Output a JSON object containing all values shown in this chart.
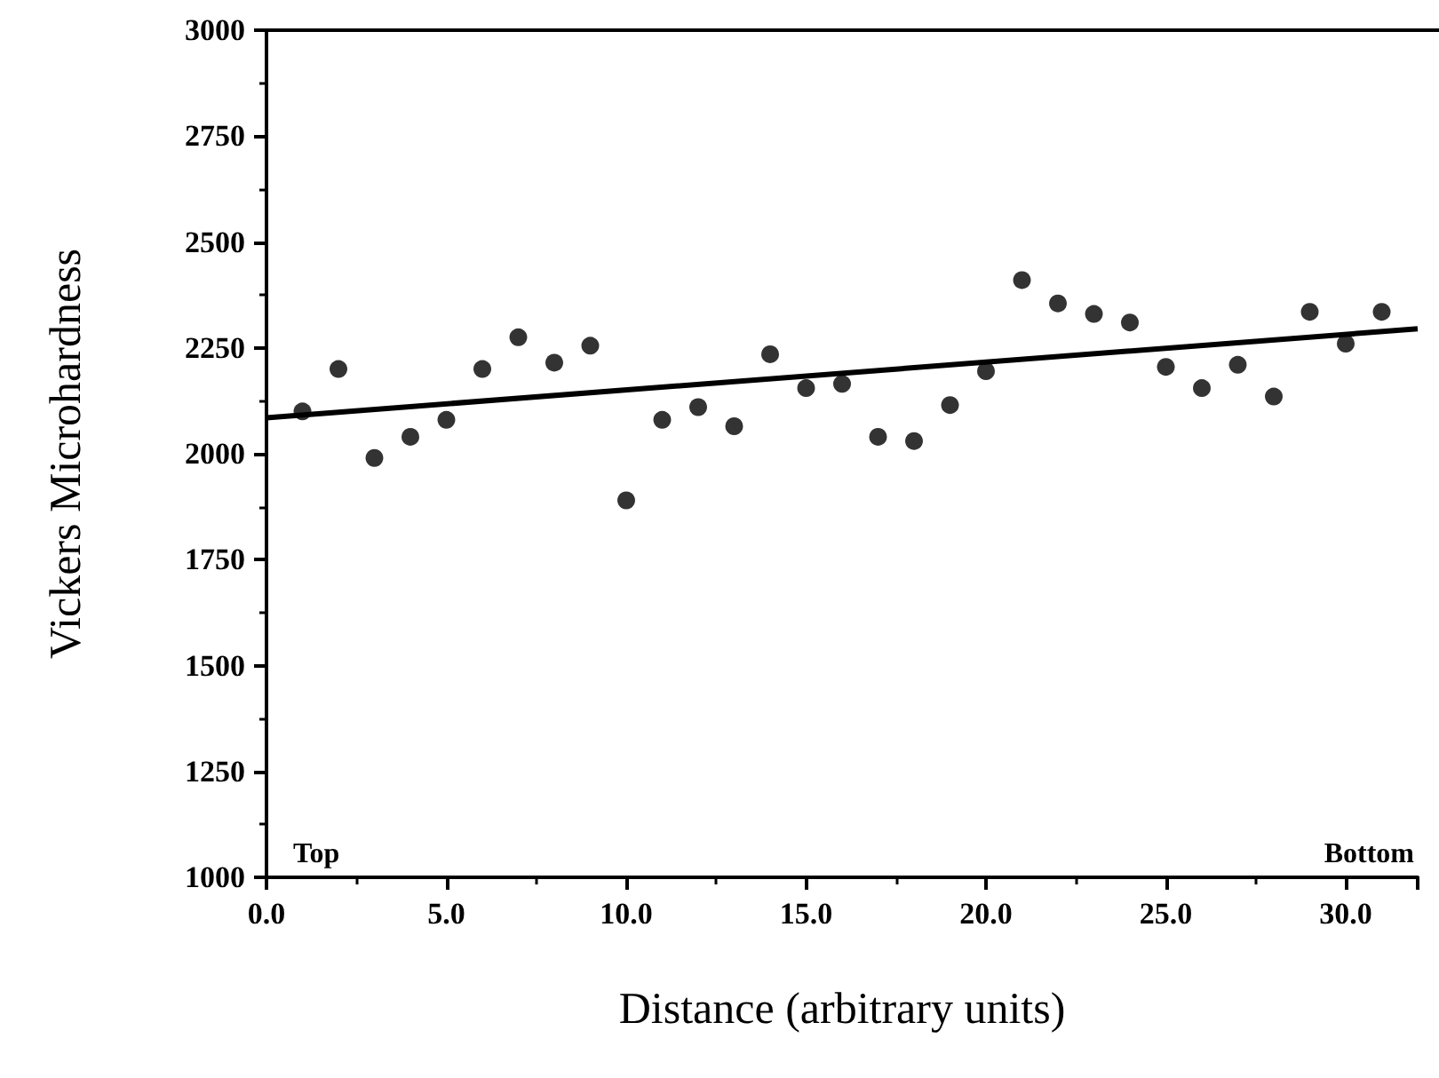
{
  "chart_data": {
    "type": "scatter",
    "xlabel": "Distance (arbitrary units)",
    "ylabel": "Vickers Microhardness",
    "annotations": [
      "Top",
      "Bottom"
    ],
    "x": [
      1,
      2,
      3,
      4,
      5,
      6,
      7,
      8,
      9,
      10,
      11,
      12,
      13,
      14,
      15,
      16,
      17,
      18,
      19,
      20,
      21,
      22,
      23,
      24,
      25,
      26,
      27,
      28,
      29,
      30,
      31
    ],
    "series": [
      {
        "color": "#000000",
        "marker": "circle",
        "values": [
          2100,
          2200,
          1990,
          2040,
          2080,
          2200,
          2275,
          2215,
          2255,
          1890,
          2080,
          2110,
          2065,
          2235,
          2155,
          2165,
          2040,
          2030,
          2115,
          2195,
          2410,
          2355,
          2330,
          2310,
          2205,
          2155,
          2210,
          2135,
          2335,
          2260,
          2335
        ]
      },
      {
        "type": "line",
        "color": "#000000",
        "marker": "none",
        "x": [
          0,
          32
        ],
        "values": [
          2085,
          2295
        ]
      }
    ],
    "xlim": [
      0,
      32
    ],
    "ylim": [
      1000,
      3000
    ],
    "xticks": [
      {
        "value": 0,
        "label": "0.0"
      },
      {
        "value": 5,
        "label": "5.0"
      },
      {
        "value": 10,
        "label": "10.0"
      },
      {
        "value": 15,
        "label": "15.0"
      },
      {
        "value": 20,
        "label": "20.0"
      },
      {
        "value": 25,
        "label": "25.0"
      },
      {
        "value": 30,
        "label": "30.0"
      }
    ],
    "yticks": [
      1000,
      1250,
      1500,
      1750,
      2000,
      2250,
      2500,
      2750,
      3000
    ],
    "grid": false
  }
}
